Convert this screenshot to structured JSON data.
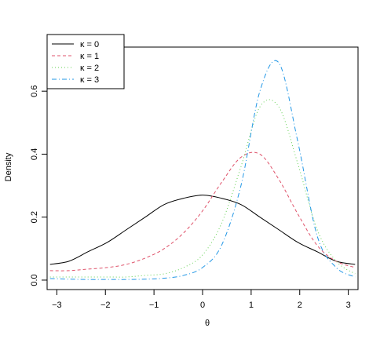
{
  "chart_data": {
    "type": "line",
    "xlabel": "θ",
    "ylabel": "Density",
    "xlim": [
      -3.2,
      3.2
    ],
    "ylim": [
      -0.03,
      0.74
    ],
    "x_ticks": [
      "−3",
      "−2",
      "−1",
      "0",
      "1",
      "2",
      "3"
    ],
    "x_tick_values": [
      -3,
      -2,
      -1,
      0,
      1,
      2,
      3
    ],
    "y_ticks": [
      "0.0",
      "0.2",
      "0.4",
      "0.6"
    ],
    "y_tick_values": [
      0.0,
      0.2,
      0.4,
      0.6
    ],
    "grid": false,
    "legend_position": "top-left",
    "x": [
      -3.14,
      -2.75,
      -2.36,
      -1.96,
      -1.57,
      -1.18,
      -0.79,
      -0.39,
      0.0,
      0.39,
      0.79,
      1.18,
      1.57,
      1.96,
      2.36,
      2.75,
      3.14
    ],
    "series": [
      {
        "name": "κ = 0",
        "color": "#000000",
        "dash": "",
        "values": [
          0.05,
          0.06,
          0.09,
          0.12,
          0.16,
          0.2,
          0.24,
          0.26,
          0.27,
          0.26,
          0.24,
          0.2,
          0.16,
          0.12,
          0.09,
          0.06,
          0.05
        ]
      },
      {
        "name": "κ = 1",
        "color": "#df536b",
        "dash": "4,3",
        "values": [
          0.03,
          0.03,
          0.035,
          0.04,
          0.05,
          0.07,
          0.1,
          0.15,
          0.22,
          0.31,
          0.39,
          0.4,
          0.32,
          0.21,
          0.11,
          0.06,
          0.04
        ]
      },
      {
        "name": "κ = 2",
        "color": "#61d04f",
        "dash": "1,3",
        "values": [
          0.01,
          0.01,
          0.01,
          0.01,
          0.01,
          0.015,
          0.02,
          0.04,
          0.08,
          0.18,
          0.36,
          0.55,
          0.55,
          0.37,
          0.16,
          0.06,
          0.02
        ]
      },
      {
        "name": "κ = 3",
        "color": "#2297e6",
        "dash": "6,3,1,3",
        "values": [
          0.005,
          0.003,
          0.002,
          0.002,
          0.002,
          0.003,
          0.006,
          0.015,
          0.04,
          0.11,
          0.3,
          0.6,
          0.69,
          0.44,
          0.14,
          0.04,
          0.01
        ]
      }
    ]
  }
}
